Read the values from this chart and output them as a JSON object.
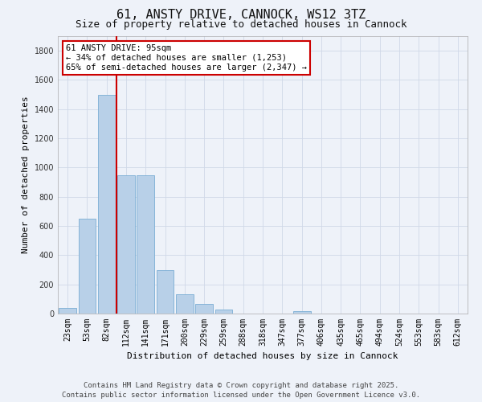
{
  "title": "61, ANSTY DRIVE, CANNOCK, WS12 3TZ",
  "subtitle": "Size of property relative to detached houses in Cannock",
  "xlabel": "Distribution of detached houses by size in Cannock",
  "ylabel": "Number of detached properties",
  "categories": [
    "23sqm",
    "53sqm",
    "82sqm",
    "112sqm",
    "141sqm",
    "171sqm",
    "200sqm",
    "229sqm",
    "259sqm",
    "288sqm",
    "318sqm",
    "347sqm",
    "377sqm",
    "406sqm",
    "435sqm",
    "465sqm",
    "494sqm",
    "524sqm",
    "553sqm",
    "583sqm",
    "612sqm"
  ],
  "values": [
    40,
    650,
    1500,
    950,
    950,
    295,
    130,
    65,
    25,
    0,
    0,
    0,
    15,
    0,
    0,
    0,
    0,
    0,
    0,
    0,
    0
  ],
  "bar_color": "#b8d0e8",
  "bar_edge_color": "#7aadd4",
  "background_color": "#eef2f9",
  "grid_color": "#d0d8e8",
  "vline_color": "#cc0000",
  "annotation_text": "61 ANSTY DRIVE: 95sqm\n← 34% of detached houses are smaller (1,253)\n65% of semi-detached houses are larger (2,347) →",
  "annotation_box_facecolor": "#ffffff",
  "annotation_box_edgecolor": "#cc0000",
  "ylim": [
    0,
    1900
  ],
  "yticks": [
    0,
    200,
    400,
    600,
    800,
    1000,
    1200,
    1400,
    1600,
    1800
  ],
  "footer_text": "Contains HM Land Registry data © Crown copyright and database right 2025.\nContains public sector information licensed under the Open Government Licence v3.0.",
  "title_fontsize": 11,
  "subtitle_fontsize": 9,
  "axis_label_fontsize": 8,
  "tick_fontsize": 7,
  "annotation_fontsize": 7.5,
  "footer_fontsize": 6.5,
  "vline_xindex": 2.5
}
